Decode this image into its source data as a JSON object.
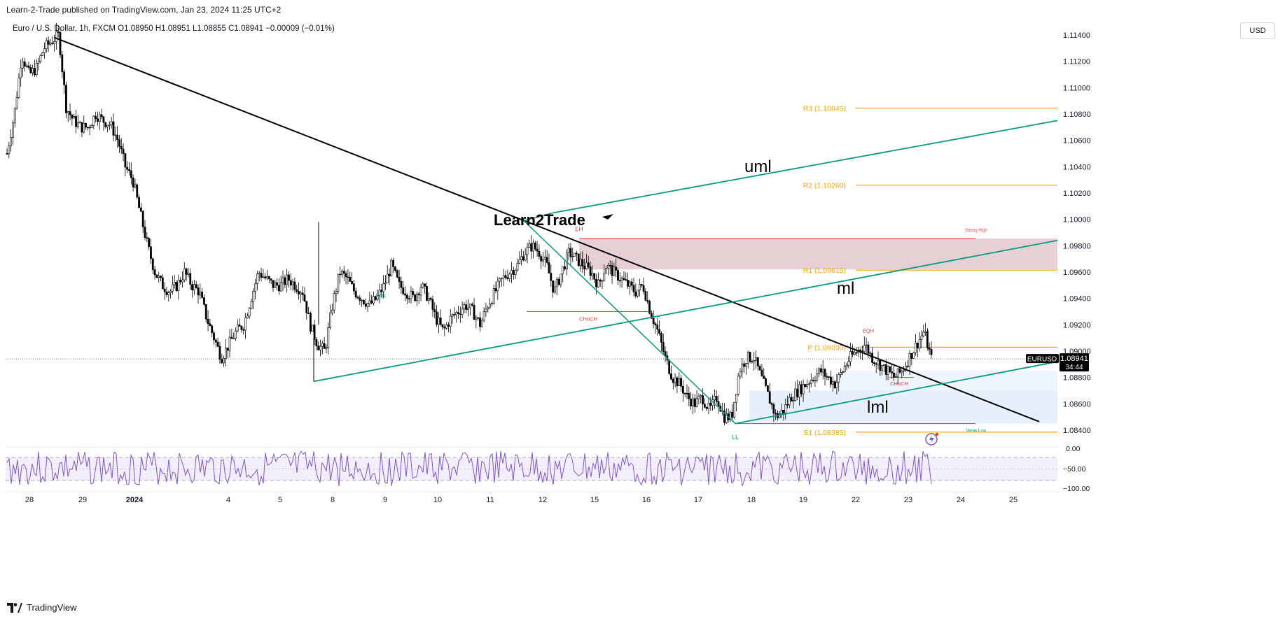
{
  "header": {
    "publisher_line": "Learn-2-Trade published on TradingView.com, Jan 23, 2024 11:25 UTC+2",
    "ohlc_line": "Euro / U.S. Dollar, 1h, FXCM  O1.08950  H1.08951  L1.08855  C1.08941  −0.00009 (−0.01%)",
    "currency": "USD"
  },
  "footer": {
    "brand": "TradingView"
  },
  "watermark": "Learn2Trade",
  "colors": {
    "trendline": "#000000",
    "pitchfork": "#089981",
    "pivot": "#f7a600",
    "supply_zone": "#e3c8cd",
    "demand_zone": "#e3eefb",
    "rsi": "#7e57c2",
    "choch": "#e53935",
    "candle": "#000000"
  },
  "chart_data": {
    "type": "candlestick",
    "symbol": "EURUSD",
    "timeframe": "1h",
    "last_price": "1.08941",
    "countdown": "34:44",
    "ylim": [
      1.0825,
      1.115
    ],
    "y_ticks": [
      "1.11400",
      "1.11200",
      "1.11000",
      "1.10800",
      "1.10600",
      "1.10400",
      "1.10200",
      "1.10000",
      "1.09800",
      "1.09600",
      "1.09400",
      "1.09200",
      "1.09000",
      "1.08800",
      "1.08600",
      "1.08400"
    ],
    "x_ticks": [
      "28",
      "29",
      "2024",
      "4",
      "5",
      "8",
      "9",
      "10",
      "11",
      "12",
      "15",
      "16",
      "17",
      "18",
      "19",
      "22",
      "23",
      "24",
      "25"
    ],
    "price_path": [
      [
        0,
        1.105
      ],
      [
        1,
        1.108
      ],
      [
        2,
        1.1125
      ],
      [
        3,
        1.111
      ],
      [
        4,
        1.1115
      ],
      [
        5,
        1.113
      ],
      [
        6,
        1.1135
      ],
      [
        7,
        1.114
      ],
      [
        8,
        1.1085
      ],
      [
        9,
        1.1075
      ],
      [
        10,
        1.107
      ],
      [
        11,
        1.107
      ],
      [
        12,
        1.108
      ],
      [
        13,
        1.1075
      ],
      [
        14,
        1.1072
      ],
      [
        15,
        1.106
      ],
      [
        16,
        1.104
      ],
      [
        17,
        1.103
      ],
      [
        18,
        1.1005
      ],
      [
        19,
        1.098
      ],
      [
        20,
        1.096
      ],
      [
        21,
        1.095
      ],
      [
        22,
        1.0945
      ],
      [
        23,
        1.095
      ],
      [
        24,
        1.096
      ],
      [
        25,
        1.095
      ],
      [
        26,
        1.0945
      ],
      [
        27,
        1.0925
      ],
      [
        28,
        1.091
      ],
      [
        29,
        1.0895
      ],
      [
        30,
        1.0905
      ],
      [
        31,
        1.0915
      ],
      [
        32,
        1.092
      ],
      [
        33,
        1.094
      ],
      [
        34,
        1.096
      ],
      [
        35,
        1.0955
      ],
      [
        36,
        1.095
      ],
      [
        37,
        1.095
      ],
      [
        38,
        1.0955
      ],
      [
        39,
        1.095
      ],
      [
        40,
        1.0945
      ],
      [
        41,
        1.092
      ],
      [
        42,
        1.0905
      ],
      [
        43,
        1.09
      ],
      [
        44,
        1.0935
      ],
      [
        45,
        1.096
      ],
      [
        46,
        1.0955
      ],
      [
        47,
        1.0945
      ],
      [
        48,
        1.094
      ],
      [
        49,
        1.0935
      ],
      [
        50,
        1.094
      ],
      [
        51,
        1.095
      ],
      [
        52,
        1.0965
      ],
      [
        53,
        1.095
      ],
      [
        54,
        1.0945
      ],
      [
        55,
        1.094
      ],
      [
        56,
        1.095
      ],
      [
        57,
        1.094
      ],
      [
        58,
        1.0925
      ],
      [
        59,
        1.0915
      ],
      [
        60,
        1.0925
      ],
      [
        61,
        1.093
      ],
      [
        62,
        1.0935
      ],
      [
        63,
        1.093
      ],
      [
        64,
        1.092
      ],
      [
        65,
        1.0935
      ],
      [
        66,
        1.0945
      ],
      [
        67,
        1.0955
      ],
      [
        68,
        1.096
      ],
      [
        69,
        1.0965
      ],
      [
        70,
        1.0975
      ],
      [
        71,
        1.098
      ],
      [
        72,
        1.0975
      ],
      [
        73,
        1.0965
      ],
      [
        74,
        1.0945
      ],
      [
        75,
        1.096
      ],
      [
        76,
        1.0975
      ],
      [
        77,
        1.097
      ],
      [
        78,
        1.0965
      ],
      [
        79,
        1.096
      ],
      [
        80,
        1.095
      ],
      [
        81,
        1.0965
      ],
      [
        82,
        1.096
      ],
      [
        83,
        1.0955
      ],
      [
        84,
        1.095
      ],
      [
        85,
        1.0945
      ],
      [
        86,
        1.095
      ],
      [
        87,
        1.093
      ],
      [
        88,
        1.0915
      ],
      [
        89,
        1.0895
      ],
      [
        90,
        1.088
      ],
      [
        91,
        1.0875
      ],
      [
        92,
        1.0865
      ],
      [
        93,
        1.086
      ],
      [
        94,
        1.0865
      ],
      [
        95,
        1.0855
      ],
      [
        96,
        1.0865
      ],
      [
        97,
        1.085
      ],
      [
        98,
        1.085
      ],
      [
        99,
        1.0885
      ],
      [
        100,
        1.0895
      ],
      [
        101,
        1.0895
      ],
      [
        102,
        1.088
      ],
      [
        103,
        1.0865
      ],
      [
        104,
        1.085
      ],
      [
        105,
        1.0855
      ],
      [
        106,
        1.0865
      ],
      [
        107,
        1.087
      ],
      [
        108,
        1.0875
      ],
      [
        109,
        1.088
      ],
      [
        110,
        1.0885
      ],
      [
        111,
        1.088
      ],
      [
        112,
        1.0875
      ],
      [
        113,
        1.0885
      ],
      [
        114,
        1.0895
      ],
      [
        115,
        1.09
      ],
      [
        116,
        1.0905
      ],
      [
        117,
        1.0895
      ],
      [
        118,
        1.089
      ],
      [
        119,
        1.0885
      ],
      [
        120,
        1.088
      ],
      [
        121,
        1.0885
      ],
      [
        122,
        1.0895
      ],
      [
        123,
        1.0905
      ],
      [
        124,
        1.0915
      ],
      [
        125,
        1.0894
      ]
    ],
    "trendline": {
      "from": [
        78,
        1.1138
      ],
      "to": [
        1484,
        1.08465
      ]
    },
    "pitchfork": {
      "uml": {
        "from": [
          790,
          1.1005
        ],
        "to": [
          1510,
          1.1075
        ],
        "label": "uml"
      },
      "ml": {
        "from": [
          448,
          1.0877
        ],
        "to": [
          1510,
          1.0984
        ],
        "label": "ml"
      },
      "lml": {
        "from": [
          1050,
          1.0845
        ],
        "to": [
          1510,
          1.0892
        ],
        "label": "lml"
      },
      "handle": [
        [
          748,
          1.0999
        ],
        [
          1050,
          1.0845
        ]
      ]
    },
    "pivot_levels": [
      {
        "label": "R3 (1.10845)",
        "value": 1.10845
      },
      {
        "label": "R2 (1.10260)",
        "value": 1.1026
      },
      {
        "label": "R1 (1.09615)",
        "value": 1.09615
      },
      {
        "label": "P (1.09030)",
        "value": 1.0903
      },
      {
        "label": "S1 (1.08385)",
        "value": 1.08385
      }
    ],
    "zones": {
      "supply": {
        "top": 1.09855,
        "bottom": 1.0962,
        "label": "Strong High"
      },
      "demand": {
        "top": 1.087,
        "bottom": 1.0845,
        "label": "Weak Low"
      }
    },
    "annotations": [
      {
        "text": "LH",
        "x": 827,
        "y": 1.0991,
        "color": "#e53935"
      },
      {
        "text": "CHoCH",
        "x": 840,
        "y": 1.0923,
        "color": "#e53935"
      },
      {
        "text": "EQL",
        "x": 544,
        "y": 1.0941,
        "color": "#089981"
      },
      {
        "text": "EQH",
        "x": 1240,
        "y": 1.0914,
        "color": "#e53935"
      },
      {
        "text": "CHoCH",
        "x": 1284,
        "y": 1.0874,
        "color": "#e53935"
      },
      {
        "text": "LL",
        "x": 1050,
        "y": 1.0833,
        "color": "#089981"
      }
    ],
    "rsi": {
      "y_ticks": [
        "0.00",
        "−50.00",
        "−100.00"
      ],
      "upper": -20,
      "lower": -80
    }
  }
}
